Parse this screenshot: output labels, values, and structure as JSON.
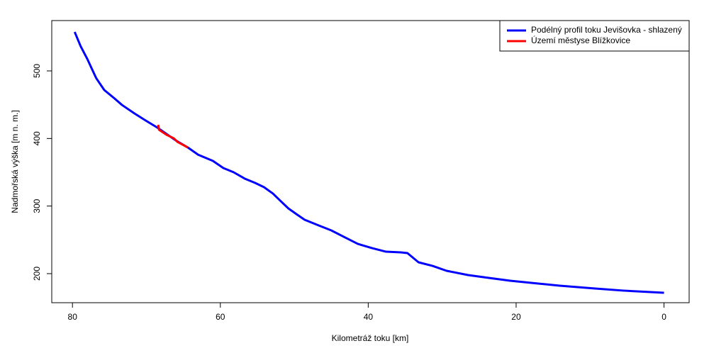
{
  "chart_data": {
    "type": "line",
    "x_label": "Kilometráž toku [km]",
    "y_label": "Nadmořská výška [m n. m.]",
    "xlim": [
      82.8,
      -3.4
    ],
    "ylim": [
      157,
      574.5
    ],
    "xticks": [
      80,
      60,
      40,
      20,
      0
    ],
    "yticks": [
      200,
      300,
      400,
      500
    ],
    "grid": false,
    "legend": "topright",
    "series": [
      {
        "name": "Podélný profil toku Jevišovka - shlazený",
        "color": "#0000ff",
        "x": [
          79.7,
          78.9,
          78,
          76.8,
          75.7,
          74.4,
          73.3,
          71.6,
          70.1,
          68.5,
          66,
          64.4,
          63,
          61,
          59.6,
          58.2,
          56.7,
          55.3,
          54.1,
          52.9,
          51.9,
          50.8,
          49.7,
          48.6,
          46.7,
          45,
          43.3,
          41.4,
          39.5,
          37.6,
          35.6,
          34.7,
          33.2,
          31.3,
          29.4,
          26.5,
          23.7,
          20.8,
          17,
          14.1,
          9.3,
          5.5,
          0
        ],
        "values": [
          557.7,
          536.7,
          517.8,
          489.5,
          471.7,
          460,
          449.6,
          437,
          426.6,
          416,
          397,
          386.7,
          376,
          366.8,
          356.3,
          350,
          340.6,
          334.3,
          328,
          318.6,
          308,
          296.5,
          288,
          279.7,
          271.3,
          264,
          254.5,
          244,
          237.8,
          232.5,
          231.5,
          230.4,
          216.8,
          211.5,
          204.2,
          197.9,
          193.7,
          189.5,
          185.3,
          182.2,
          178,
          174.9,
          171.7
        ]
      },
      {
        "name": "Území městyse Blížkovice",
        "color": "#ff0000",
        "x": [
          68.4,
          68.3,
          67.3,
          66.3,
          65.8,
          64.4
        ],
        "values": [
          420.3,
          413,
          405.6,
          400.3,
          395,
          386.7
        ]
      }
    ]
  }
}
